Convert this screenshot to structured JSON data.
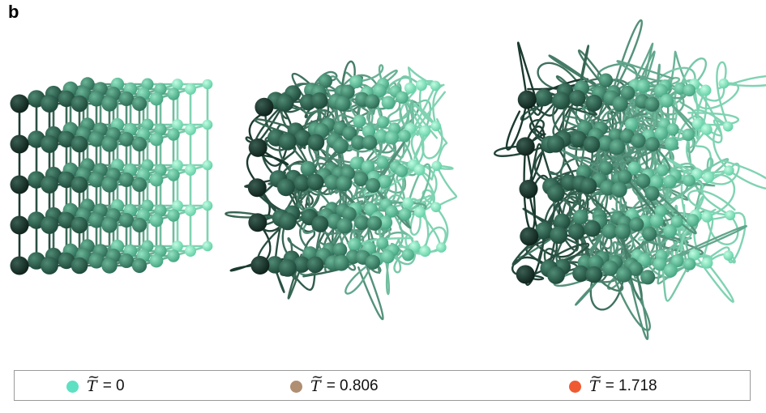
{
  "panel_label": "b",
  "palette": {
    "ball_gradient": [
      "#163227",
      "#2c5d4b",
      "#3f8a6e",
      "#5cbf98",
      "#8af0c6"
    ],
    "bond_dark": "#1b3a2f",
    "bond_light": "#7fd3b2"
  },
  "legend": {
    "items": [
      {
        "symbol": "T",
        "equals": "= 0",
        "color": "#5ee0c2"
      },
      {
        "symbol": "T",
        "equals": "= 0.806",
        "color": "#b08e72"
      },
      {
        "symbol": "T",
        "equals": "= 1.718",
        "color": "#f05a32"
      }
    ]
  }
}
